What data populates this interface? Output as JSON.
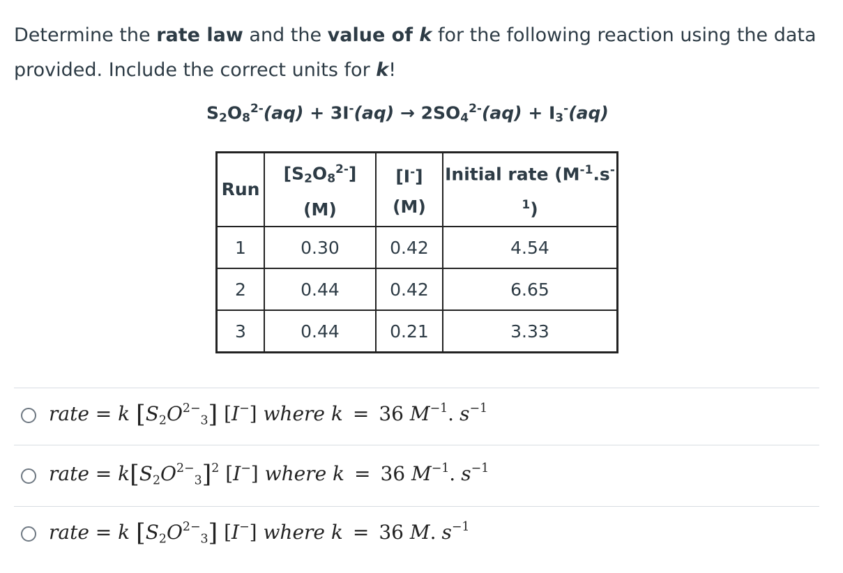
{
  "question": {
    "line_a": "Determine the ",
    "bold_rate_law": "rate law",
    "line_b": " and the ",
    "bold_value_of": "value of ",
    "bold_k": "k",
    "line_c": " for the following reaction using the data provided. Include the correct units for ",
    "line_d": "!"
  },
  "equation": {
    "r1_s": "S",
    "r1_s_sub": "2",
    "r1_o": "O",
    "r1_o_sub": "8",
    "r1_charge": "2-",
    "r1_state": "(aq)",
    "plus1": " + ",
    "r2_coef": "3I",
    "r2_charge": "-",
    "r2_state": "(aq)",
    "arrow": " → ",
    "p1_coef": "2SO",
    "p1_sub": "4",
    "p1_charge": "2-",
    "p1_state": "(aq)",
    "plus2": " + ",
    "p2_i": "I",
    "p2_sub": "3",
    "p2_charge": "-",
    "p2_state": "(aq)"
  },
  "table": {
    "headers": {
      "run": "Run",
      "s2o8_open": "[S",
      "s2o8_sub1": "2",
      "s2o8_o": "O",
      "s2o8_sub2": "8",
      "s2o8_charge": "2-",
      "s2o8_close": "]",
      "s2o8_unit": "(M)",
      "i_open": "[I",
      "i_charge": "-",
      "i_close": "]",
      "i_unit": "(M)",
      "rate_a": "Initial rate (M",
      "rate_sup1": "-1",
      "rate_mid": ".s",
      "rate_sup2": "-1",
      "rate_close": ")"
    },
    "rows": [
      {
        "run": "1",
        "s2o8": "0.30",
        "i": "0.42",
        "rate": "4.54"
      },
      {
        "run": "2",
        "s2o8": "0.44",
        "i": "0.42",
        "rate": "6.65"
      },
      {
        "run": "3",
        "s2o8": "0.44",
        "i": "0.21",
        "rate": "3.33"
      }
    ]
  },
  "answers": [
    {
      "rate": "rate",
      "eq": " = ",
      "k": "k",
      "S": "S",
      "s_sub": "2",
      "O": "O",
      "o_sup": "2−",
      "o_sub": "3",
      "s_exp": "",
      "I": "I",
      "i_sup": "−",
      "where": "where",
      "k2": "k",
      "eq2": "=",
      "num": "36",
      "unit": "M",
      "unit_sup": "−1",
      "dot": ".",
      "s": "s",
      "s_sup": "−1"
    },
    {
      "rate": "rate",
      "eq": " = ",
      "k": "k",
      "S": "S",
      "s_sub": "2",
      "O": "O",
      "o_sup": "2−",
      "o_sub": "3",
      "s_exp": "2",
      "I": "I",
      "i_sup": "−",
      "where": "where",
      "k2": "k",
      "eq2": "=",
      "num": "36",
      "unit": "M",
      "unit_sup": "−1",
      "dot": ".",
      "s": "s",
      "s_sup": "−1"
    },
    {
      "rate": "rate",
      "eq": " = ",
      "k": "k",
      "S": "S",
      "s_sub": "2",
      "O": "O",
      "o_sup": "2−",
      "o_sub": "3",
      "s_exp": "",
      "I": "I",
      "i_sup": "−",
      "where": "where",
      "k2": "k",
      "eq2": "=",
      "num": "36",
      "unit": "M",
      "unit_sup": "",
      "dot": ".",
      "s": "s",
      "s_sup": "−1"
    }
  ]
}
